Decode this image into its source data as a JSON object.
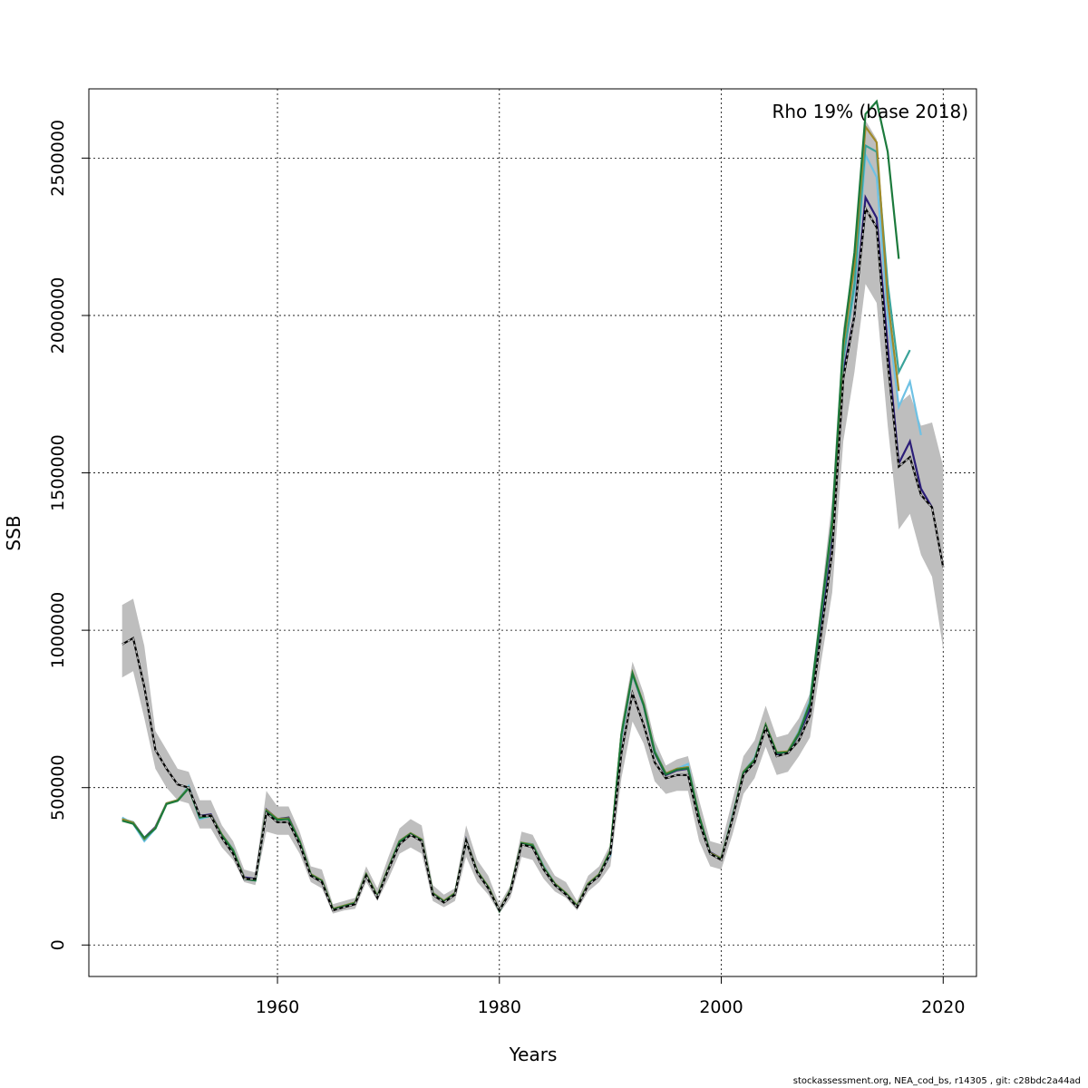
{
  "chart_data": {
    "type": "line",
    "title": "",
    "xlabel": "Years",
    "ylabel": "SSB",
    "annotation": "Rho 19% (base 2018)",
    "xlim": [
      1943,
      2023
    ],
    "ylim": [
      -100000,
      2720000
    ],
    "x_ticks": [
      1960,
      1980,
      2000,
      2020
    ],
    "y_ticks": [
      0,
      500000,
      1000000,
      1500000,
      2000000,
      2500000
    ],
    "grid": true,
    "ci_band": {
      "years": [
        1946,
        1947,
        1948,
        1949,
        1950,
        1951,
        1952,
        1953,
        1954,
        1955,
        1956,
        1957,
        1958,
        1959,
        1960,
        1961,
        1962,
        1963,
        1964,
        1965,
        1966,
        1967,
        1968,
        1969,
        1970,
        1971,
        1972,
        1973,
        1974,
        1975,
        1976,
        1977,
        1978,
        1979,
        1980,
        1981,
        1982,
        1983,
        1984,
        1985,
        1986,
        1987,
        1988,
        1989,
        1990,
        1991,
        1992,
        1993,
        1994,
        1995,
        1996,
        1997,
        1998,
        1999,
        2000,
        2001,
        2002,
        2003,
        2004,
        2005,
        2006,
        2007,
        2008,
        2009,
        2010,
        2011,
        2012,
        2013,
        2014,
        2015,
        2016,
        2017,
        2018,
        2019,
        2020
      ],
      "lower": [
        850000,
        870000,
        720000,
        560000,
        500000,
        460000,
        450000,
        370000,
        370000,
        310000,
        270000,
        200000,
        190000,
        360000,
        350000,
        350000,
        290000,
        200000,
        180000,
        100000,
        110000,
        115000,
        200000,
        140000,
        210000,
        290000,
        310000,
        290000,
        140000,
        120000,
        140000,
        280000,
        200000,
        160000,
        100000,
        150000,
        280000,
        270000,
        210000,
        170000,
        150000,
        110000,
        170000,
        200000,
        250000,
        530000,
        710000,
        640000,
        520000,
        480000,
        490000,
        490000,
        330000,
        250000,
        240000,
        350000,
        480000,
        530000,
        630000,
        540000,
        550000,
        600000,
        660000,
        900000,
        1120000,
        1600000,
        1820000,
        2100000,
        2040000,
        1650000,
        1320000,
        1370000,
        1240000,
        1170000,
        940000
      ],
      "upper": [
        1080000,
        1100000,
        950000,
        680000,
        620000,
        560000,
        550000,
        460000,
        460000,
        380000,
        330000,
        240000,
        230000,
        490000,
        440000,
        440000,
        360000,
        250000,
        240000,
        130000,
        140000,
        150000,
        250000,
        180000,
        280000,
        370000,
        400000,
        380000,
        190000,
        160000,
        180000,
        380000,
        270000,
        220000,
        130000,
        190000,
        360000,
        350000,
        280000,
        220000,
        200000,
        140000,
        220000,
        250000,
        320000,
        700000,
        900000,
        800000,
        650000,
        570000,
        590000,
        600000,
        460000,
        330000,
        320000,
        460000,
        600000,
        650000,
        760000,
        660000,
        670000,
        720000,
        800000,
        1100000,
        1420000,
        1960000,
        2200000,
        2620000,
        2560000,
        2050000,
        1720000,
        1750000,
        1650000,
        1660000,
        1520000
      ]
    },
    "series": [
      {
        "name": "",
        "color": "#000000",
        "dashed": true,
        "x": [
          1946,
          1947,
          1948,
          1949,
          1950,
          1951,
          1952,
          1953,
          1954,
          1955,
          1956,
          1957,
          1958,
          1959,
          1960,
          1961,
          1962,
          1963,
          1964,
          1965,
          1966,
          1967,
          1968,
          1969,
          1970,
          1971,
          1972,
          1973,
          1974,
          1975,
          1976,
          1977,
          1978,
          1979,
          1980,
          1981,
          1982,
          1983,
          1984,
          1985,
          1986,
          1987,
          1988,
          1989,
          1990,
          1991,
          1992,
          1993,
          1994,
          1995,
          1996,
          1997,
          1998,
          1999,
          2000,
          2001,
          2002,
          2003,
          2004,
          2005,
          2006,
          2007,
          2008,
          2009,
          2010,
          2011,
          2012,
          2013,
          2014,
          2015,
          2016,
          2017,
          2018,
          2019,
          2020
        ],
        "values": [
          955000,
          975000,
          820000,
          620000,
          560000,
          510000,
          500000,
          410000,
          410000,
          340000,
          290000,
          210000,
          210000,
          420000,
          390000,
          390000,
          320000,
          220000,
          200000,
          110000,
          120000,
          130000,
          220000,
          150000,
          240000,
          320000,
          350000,
          330000,
          160000,
          135000,
          160000,
          330000,
          230000,
          180000,
          110000,
          170000,
          320000,
          310000,
          240000,
          190000,
          160000,
          120000,
          190000,
          220000,
          290000,
          610000,
          800000,
          700000,
          580000,
          530000,
          540000,
          540000,
          390000,
          290000,
          270000,
          400000,
          540000,
          580000,
          690000,
          600000,
          610000,
          650000,
          730000,
          990000,
          1250000,
          1800000,
          2000000,
          2340000,
          2280000,
          1850000,
          1520000,
          1550000,
          1430000,
          1390000,
          1200000
        ]
      },
      {
        "name": "",
        "color": "#2b1d78",
        "dashed": false,
        "x": [
          1946,
          1947,
          1948,
          1949,
          1950,
          1951,
          1952,
          1953,
          1954,
          1955,
          1956,
          1957,
          1958,
          1959,
          1960,
          1961,
          1962,
          1963,
          1964,
          1965,
          1966,
          1967,
          1968,
          1969,
          1970,
          1971,
          1972,
          1973,
          1974,
          1975,
          1976,
          1977,
          1978,
          1979,
          1980,
          1981,
          1982,
          1983,
          1984,
          1985,
          1986,
          1987,
          1988,
          1989,
          1990,
          1991,
          1992,
          1993,
          1994,
          1995,
          1996,
          1997,
          1998,
          1999,
          2000,
          2001,
          2002,
          2003,
          2004,
          2005,
          2006,
          2007,
          2008,
          2009,
          2010,
          2011,
          2012,
          2013,
          2014,
          2015,
          2016,
          2017,
          2018,
          2019
        ],
        "values": [
          400000,
          390000,
          340000,
          375000,
          450000,
          460000,
          500000,
          410000,
          415000,
          350000,
          300000,
          215000,
          210000,
          430000,
          400000,
          405000,
          330000,
          225000,
          205000,
          115000,
          125000,
          135000,
          225000,
          155000,
          245000,
          330000,
          355000,
          335000,
          165000,
          140000,
          165000,
          335000,
          235000,
          185000,
          110000,
          175000,
          325000,
          315000,
          245000,
          195000,
          165000,
          125000,
          195000,
          225000,
          295000,
          660000,
          860000,
          760000,
          610000,
          540000,
          555000,
          560000,
          410000,
          295000,
          275000,
          405000,
          550000,
          590000,
          700000,
          605000,
          610000,
          670000,
          750000,
          1030000,
          1310000,
          1820000,
          2000000,
          2375000,
          2310000,
          1900000,
          1530000,
          1600000,
          1450000,
          1390000
        ]
      },
      {
        "name": "",
        "color": "#6ec1e4",
        "dashed": false,
        "x": [
          1946,
          1947,
          1948,
          1949,
          1950,
          1951,
          1952,
          1953,
          1954,
          1955,
          1956,
          1957,
          1958,
          1959,
          1960,
          1961,
          1962,
          1963,
          1964,
          1965,
          1966,
          1967,
          1968,
          1969,
          1970,
          1971,
          1972,
          1973,
          1974,
          1975,
          1976,
          1977,
          1978,
          1979,
          1980,
          1981,
          1982,
          1983,
          1984,
          1985,
          1986,
          1987,
          1988,
          1989,
          1990,
          1991,
          1992,
          1993,
          1994,
          1995,
          1996,
          1997,
          1998,
          1999,
          2000,
          2001,
          2002,
          2003,
          2004,
          2005,
          2006,
          2007,
          2008,
          2009,
          2010,
          2011,
          2012,
          2013,
          2014,
          2015,
          2016,
          2017,
          2018
        ],
        "values": [
          405000,
          385000,
          330000,
          370000,
          450000,
          460000,
          505000,
          400000,
          410000,
          350000,
          305000,
          210000,
          205000,
          425000,
          400000,
          400000,
          330000,
          225000,
          205000,
          115000,
          125000,
          135000,
          225000,
          155000,
          245000,
          330000,
          355000,
          335000,
          165000,
          140000,
          165000,
          330000,
          235000,
          185000,
          110000,
          175000,
          325000,
          320000,
          250000,
          195000,
          165000,
          125000,
          195000,
          225000,
          285000,
          660000,
          860000,
          760000,
          620000,
          545000,
          560000,
          575000,
          405000,
          290000,
          275000,
          410000,
          550000,
          595000,
          700000,
          610000,
          615000,
          680000,
          780000,
          1060000,
          1340000,
          1870000,
          2080000,
          2510000,
          2440000,
          2000000,
          1710000,
          1790000,
          1620000
        ]
      },
      {
        "name": "",
        "color": "#3aa39a",
        "dashed": false,
        "x": [
          1946,
          1947,
          1948,
          1949,
          1950,
          1951,
          1952,
          1953,
          1954,
          1955,
          1956,
          1957,
          1958,
          1959,
          1960,
          1961,
          1962,
          1963,
          1964,
          1965,
          1966,
          1967,
          1968,
          1969,
          1970,
          1971,
          1972,
          1973,
          1974,
          1975,
          1976,
          1977,
          1978,
          1979,
          1980,
          1981,
          1982,
          1983,
          1984,
          1985,
          1986,
          1987,
          1988,
          1989,
          1990,
          1991,
          1992,
          1993,
          1994,
          1995,
          1996,
          1997,
          1998,
          1999,
          2000,
          2001,
          2002,
          2003,
          2004,
          2005,
          2006,
          2007,
          2008,
          2009,
          2010,
          2011,
          2012,
          2013,
          2014,
          2015,
          2016,
          2017
        ],
        "values": [
          400000,
          390000,
          335000,
          372000,
          450000,
          460000,
          500000,
          405000,
          412000,
          350000,
          302000,
          212000,
          207000,
          428000,
          400000,
          402000,
          330000,
          225000,
          205000,
          115000,
          125000,
          135000,
          225000,
          155000,
          245000,
          330000,
          355000,
          335000,
          165000,
          140000,
          165000,
          332000,
          235000,
          185000,
          110000,
          175000,
          325000,
          320000,
          248000,
          195000,
          165000,
          125000,
          195000,
          225000,
          300000,
          670000,
          865000,
          765000,
          615000,
          545000,
          560000,
          565000,
          410000,
          292000,
          275000,
          405000,
          550000,
          590000,
          700000,
          610000,
          615000,
          675000,
          770000,
          1050000,
          1330000,
          1860000,
          2100000,
          2540000,
          2520000,
          2100000,
          1820000,
          1890000
        ]
      },
      {
        "name": "",
        "color": "#a08a2a",
        "dashed": false,
        "x": [
          1946,
          1947,
          1948,
          1949,
          1950,
          1951,
          1952,
          1953,
          1954,
          1955,
          1956,
          1957,
          1958,
          1959,
          1960,
          1961,
          1962,
          1963,
          1964,
          1965,
          1966,
          1967,
          1968,
          1969,
          1970,
          1971,
          1972,
          1973,
          1974,
          1975,
          1976,
          1977,
          1978,
          1979,
          1980,
          1981,
          1982,
          1983,
          1984,
          1985,
          1986,
          1987,
          1988,
          1989,
          1990,
          1991,
          1992,
          1993,
          1994,
          1995,
          1996,
          1997,
          1998,
          1999,
          2000,
          2001,
          2002,
          2003,
          2004,
          2005,
          2006,
          2007,
          2008,
          2009,
          2010,
          2011,
          2012,
          2013,
          2014,
          2015,
          2016
        ],
        "values": [
          400000,
          388000,
          338000,
          372000,
          450000,
          460000,
          500000,
          408000,
          412000,
          350000,
          302000,
          212000,
          207000,
          428000,
          400000,
          402000,
          330000,
          225000,
          205000,
          115000,
          125000,
          135000,
          225000,
          155000,
          245000,
          330000,
          355000,
          335000,
          165000,
          140000,
          165000,
          332000,
          235000,
          185000,
          110000,
          175000,
          325000,
          318000,
          246000,
          195000,
          165000,
          125000,
          195000,
          225000,
          300000,
          670000,
          865000,
          765000,
          615000,
          545000,
          560000,
          565000,
          410000,
          292000,
          275000,
          405000,
          550000,
          590000,
          700000,
          612000,
          615000,
          675000,
          770000,
          1060000,
          1340000,
          1900000,
          2160000,
          2600000,
          2550000,
          2050000,
          1760000
        ]
      },
      {
        "name": "",
        "color": "#1c7a3c",
        "dashed": false,
        "x": [
          1946,
          1947,
          1948,
          1949,
          1950,
          1951,
          1952,
          1953,
          1954,
          1955,
          1956,
          1957,
          1958,
          1959,
          1960,
          1961,
          1962,
          1963,
          1964,
          1965,
          1966,
          1967,
          1968,
          1969,
          1970,
          1971,
          1972,
          1973,
          1974,
          1975,
          1976,
          1977,
          1978,
          1979,
          1980,
          1981,
          1982,
          1983,
          1984,
          1985,
          1986,
          1987,
          1988,
          1989,
          1990,
          1991,
          1992,
          1993,
          1994,
          1995,
          1996,
          1997,
          1998,
          1999,
          2000,
          2001,
          2002,
          2003,
          2004,
          2005,
          2006,
          2007,
          2008,
          2009,
          2010,
          2011,
          2012,
          2013,
          2014,
          2015,
          2016
        ],
        "values": [
          395000,
          385000,
          340000,
          370000,
          448000,
          458000,
          498000,
          405000,
          410000,
          348000,
          300000,
          210000,
          205000,
          425000,
          398000,
          400000,
          328000,
          223000,
          203000,
          113000,
          123000,
          133000,
          223000,
          153000,
          243000,
          328000,
          353000,
          333000,
          163000,
          138000,
          163000,
          330000,
          233000,
          183000,
          108000,
          173000,
          323000,
          316000,
          244000,
          193000,
          163000,
          123000,
          193000,
          223000,
          298000,
          668000,
          862000,
          762000,
          612000,
          542000,
          557000,
          562000,
          408000,
          290000,
          273000,
          403000,
          548000,
          588000,
          698000,
          610000,
          612000,
          672000,
          768000,
          1060000,
          1350000,
          1920000,
          2200000,
          2640000,
          2680000,
          2520000,
          2180000
        ]
      }
    ]
  },
  "footer": "stockassessment.org, NEA_cod_bs, r14305 , git: c28bdc2a44ad"
}
